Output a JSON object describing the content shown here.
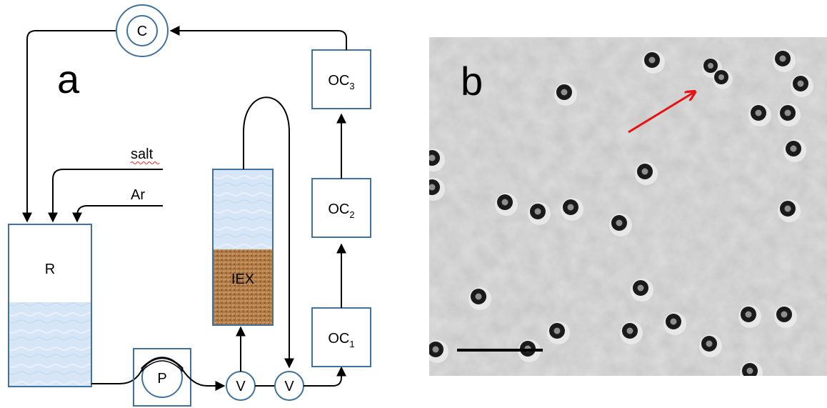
{
  "panel_a": {
    "letter": "a",
    "reservoir_label": "R",
    "pump_label": "P",
    "valve_labels": [
      "V",
      "V"
    ],
    "column_label": "IEX",
    "condenser_label": "C",
    "cells": [
      {
        "base": "OC",
        "sub": "1"
      },
      {
        "base": "OC",
        "sub": "2"
      },
      {
        "base": "OC",
        "sub": "3"
      }
    ],
    "inlets": [
      "salt",
      "Ar"
    ]
  },
  "panel_b": {
    "letter": "b"
  },
  "colors": {
    "stroke": "#41719c",
    "liquid": "#d5e5f5",
    "resin": "#a8703c",
    "arrow_red": "#e81010",
    "micrograph_bg": "#c4c4c4"
  }
}
